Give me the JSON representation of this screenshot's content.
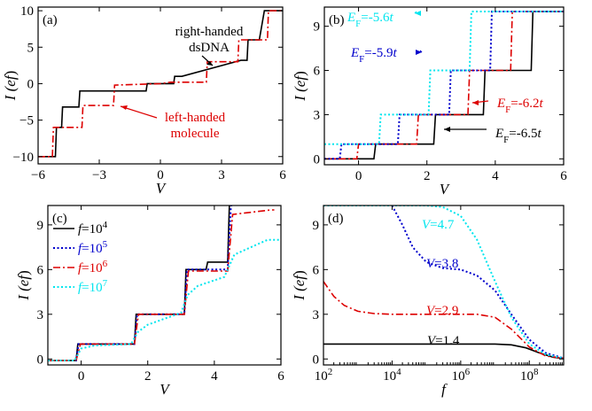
{
  "chart_data": [
    {
      "panel": "(a)",
      "type": "line",
      "xlabel": "V",
      "ylabel": "I (ef)",
      "xlim": [
        -6,
        6
      ],
      "ylim": [
        -11,
        10.5
      ],
      "xticks": [
        "-6",
        "-3",
        "0",
        "3",
        "6"
      ],
      "yticks": [
        "-10",
        "-5",
        "0",
        "5",
        "10"
      ],
      "series": [
        {
          "name": "right-handed dsDNA",
          "color": "#000000",
          "style": "solid",
          "x": [
            -6,
            -5.7,
            -5.15,
            -5.1,
            -4.85,
            -4.8,
            -4.3,
            -4.25,
            -4,
            -3.95,
            -1.05,
            -1,
            -0.7,
            -0.65,
            0.65,
            0.7,
            1,
            1.05,
            3.95,
            4,
            4.25,
            4.3,
            4.8,
            4.85,
            5.1,
            5.15,
            5.7,
            6
          ],
          "y": [
            -10,
            -10,
            -10,
            -6,
            -6,
            -3.2,
            -3.2,
            -3.2,
            -3.2,
            -1,
            -1,
            -1,
            -1,
            0,
            0,
            1,
            1,
            1,
            3.2,
            3.2,
            3.2,
            6,
            6,
            6,
            10,
            10,
            10,
            10
          ]
        },
        {
          "name": "left-handed molecule",
          "color": "#dd0000",
          "style": "dashdot",
          "x": [
            -6,
            -5.75,
            -5.3,
            -5.25,
            -3.85,
            -3.8,
            -2.3,
            -2.25,
            0,
            0.5,
            2.25,
            2.3,
            3.8,
            3.85,
            5.25,
            5.3,
            6
          ],
          "y": [
            -10,
            -10,
            -10,
            -6,
            -6,
            -3,
            -3,
            -0.2,
            0,
            0.2,
            0.2,
            3,
            3,
            6,
            6,
            10,
            10
          ]
        }
      ],
      "annotations": [
        "right-handed",
        "dsDNA",
        "left-handed",
        "molecule"
      ]
    },
    {
      "panel": "(b)",
      "type": "line",
      "xlabel": "V",
      "ylabel": "I (ef)",
      "xlim": [
        -1,
        6
      ],
      "ylim": [
        -0.4,
        10.3
      ],
      "xticks": [
        "0",
        "2",
        "4",
        "6"
      ],
      "yticks": [
        "0",
        "3",
        "6",
        "9"
      ],
      "series": [
        {
          "name": "E_F=-6.5t",
          "color": "#000000",
          "style": "solid",
          "x": [
            -1,
            0.45,
            0.5,
            2.2,
            2.25,
            3.65,
            3.7,
            5.05,
            5.1,
            6
          ],
          "y": [
            0,
            0,
            1,
            1,
            3,
            3,
            6,
            6,
            10,
            10
          ]
        },
        {
          "name": "E_F=-6.2t",
          "color": "#dd0000",
          "style": "dashdot",
          "x": [
            -1,
            -0.05,
            0,
            1.7,
            1.75,
            3.2,
            3.25,
            4.45,
            4.5,
            6
          ],
          "y": [
            0,
            0,
            1,
            1,
            3,
            3,
            6,
            6,
            10,
            10
          ]
        },
        {
          "name": "E_F=-5.9t",
          "color": "#0000cc",
          "style": "dot",
          "x": [
            -1,
            -0.55,
            -0.5,
            1.15,
            1.2,
            2.65,
            2.7,
            3.85,
            3.9,
            6
          ],
          "y": [
            0,
            0,
            1,
            1,
            3,
            3,
            6,
            6,
            10,
            10
          ]
        },
        {
          "name": "E_F=-5.6t",
          "color": "#00e5ee",
          "style": "dot",
          "x": [
            -1,
            -1,
            -1,
            0.6,
            0.65,
            2.05,
            2.1,
            3.25,
            3.3,
            6
          ],
          "y": [
            1,
            1,
            1,
            1,
            3,
            3,
            6,
            6,
            10,
            10
          ]
        }
      ],
      "labels": [
        {
          "pre": "E",
          "sub": "F",
          "post": "=-5.6",
          "it": "t",
          "color": "#00e5ee"
        },
        {
          "pre": "E",
          "sub": "F",
          "post": "=-5.9",
          "it": "t",
          "color": "#0000cc"
        },
        {
          "pre": "E",
          "sub": "F",
          "post": "=-6.2",
          "it": "t",
          "color": "#dd0000"
        },
        {
          "pre": "E",
          "sub": "F",
          "post": "=-6.5",
          "it": "t",
          "color": "#000000"
        }
      ]
    },
    {
      "panel": "(c)",
      "type": "line",
      "xlabel": "V",
      "ylabel": "I (ef)",
      "xlim": [
        -1,
        6
      ],
      "ylim": [
        -0.4,
        10.3
      ],
      "xticks": [
        "0",
        "2",
        "4",
        "6"
      ],
      "yticks": [
        "0",
        "3",
        "6",
        "9"
      ],
      "legend_placement": "top-left",
      "series": [
        {
          "name": "f=10^4",
          "color": "#000000",
          "style": "solid",
          "x": [
            -1,
            -0.15,
            -0.1,
            1.6,
            1.65,
            3.1,
            3.15,
            3.75,
            3.8,
            4.4,
            4.45,
            4.5
          ],
          "y": [
            -0.1,
            -0.1,
            1,
            1,
            3,
            3,
            6,
            6,
            6.5,
            6.5,
            10.3,
            10.3
          ]
        },
        {
          "name": "f=10^5",
          "color": "#0000cc",
          "style": "dot",
          "x": [
            -1,
            -0.15,
            -0.08,
            1.6,
            1.68,
            3.1,
            3.18,
            4.4,
            4.5,
            4.55
          ],
          "y": [
            -0.1,
            -0.1,
            1,
            1,
            3,
            3,
            6,
            6,
            10.3,
            10.3
          ]
        },
        {
          "name": "f=10^6",
          "color": "#dd0000",
          "style": "dashdot",
          "x": [
            -1,
            -0.15,
            -0.02,
            1.6,
            1.72,
            3.1,
            3.22,
            4.4,
            4.55,
            5.7,
            5.8
          ],
          "y": [
            -0.1,
            -0.1,
            1,
            1,
            3,
            3,
            5.9,
            5.9,
            9.7,
            10,
            10
          ]
        },
        {
          "name": "f=10^7",
          "color": "#00e5ee",
          "style": "dot",
          "x": [
            -1,
            -0.2,
            0,
            0.4,
            1.5,
            1.7,
            2,
            3,
            3.2,
            3.5,
            4.3,
            4.6,
            5.2,
            5.6,
            6
          ],
          "y": [
            -0.1,
            -0.1,
            0.7,
            0.9,
            1,
            1.8,
            2.3,
            3.1,
            4.3,
            4.9,
            5.5,
            7,
            7.6,
            8,
            8
          ]
        }
      ],
      "legend": [
        {
          "it": "f",
          "post": "=10",
          "sup": "4",
          "color": "#000000"
        },
        {
          "it": "f",
          "post": "=10",
          "sup": "5",
          "color": "#0000cc"
        },
        {
          "it": "f",
          "post": "=10",
          "sup": "6",
          "color": "#dd0000"
        },
        {
          "it": "f",
          "post": "=10",
          "sup": "7",
          "color": "#00e5ee"
        }
      ]
    },
    {
      "panel": "(d)",
      "type": "line",
      "xlabel": "f",
      "ylabel": "I (ef)",
      "xscale": "log",
      "xlim": [
        100,
        1000000000
      ],
      "ylim": [
        -0.4,
        10.3
      ],
      "xticks": [
        "10^2",
        "10^4",
        "10^6",
        "10^8"
      ],
      "yticks": [
        "0",
        "3",
        "6",
        "9"
      ],
      "series": [
        {
          "name": "V=1.4",
          "color": "#000000",
          "style": "solid",
          "x": [
            100,
            10000000,
            30000000,
            80000000,
            200000000,
            500000000,
            1000000000
          ],
          "y": [
            1,
            1,
            0.95,
            0.75,
            0.4,
            0.12,
            0.03
          ]
        },
        {
          "name": "V=2.9",
          "color": "#dd0000",
          "style": "dashdot",
          "x": [
            100,
            200,
            400,
            1000,
            3000,
            10000,
            3000000,
            10000000,
            30000000,
            100000000,
            300000000,
            1000000000
          ],
          "y": [
            5.2,
            4.2,
            3.6,
            3.2,
            3.05,
            3,
            3,
            2.8,
            2,
            0.8,
            0.2,
            0.05
          ]
        },
        {
          "name": "V=3.8",
          "color": "#0000cc",
          "style": "dot",
          "x": [
            10000,
            20000,
            40000,
            100000,
            300000,
            1000000,
            3000000,
            10000000,
            30000000,
            100000000,
            300000000,
            1000000000
          ],
          "y": [
            10.3,
            9,
            7.5,
            6.5,
            6.1,
            6,
            5.6,
            4.6,
            3,
            1.3,
            0.4,
            0.05
          ]
        },
        {
          "name": "V=4.7",
          "color": "#00e5ee",
          "style": "dot",
          "x": [
            100,
            100000,
            300000,
            1000000,
            3000000,
            10000000,
            30000000,
            100000000,
            300000000,
            1000000000
          ],
          "y": [
            10.3,
            10.3,
            10.2,
            9.6,
            8,
            5.2,
            2.8,
            1,
            0.3,
            0.05
          ]
        }
      ],
      "labels": [
        {
          "it": "V",
          "post": "=4.7",
          "color": "#00e5ee"
        },
        {
          "it": "V",
          "post": "=3.8",
          "color": "#0000cc"
        },
        {
          "it": "V",
          "post": "=2.9",
          "color": "#dd0000"
        },
        {
          "it": "V",
          "post": "=1.4",
          "color": "#000000"
        }
      ]
    }
  ]
}
